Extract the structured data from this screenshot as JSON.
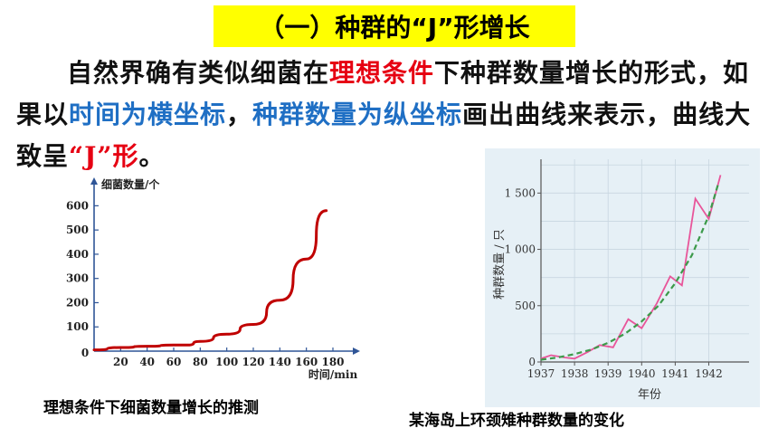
{
  "title": "（一）种群的“J”形增长",
  "paragraph": {
    "p1": "自然界确有类似细菌在",
    "p2": "理想条件",
    "p3": "下种群数量增长的形式，如果以",
    "p4": "时间为横坐标",
    "p5": "，",
    "p6": "种群数量为纵坐标",
    "p7": "画出曲线来表示，曲线大致呈",
    "p8": "“J”形",
    "p9": "。"
  },
  "captions": {
    "left": "理想条件下细菌数量增长的推测",
    "right": "某海岛上环颈雉种群数量的变化"
  },
  "colors": {
    "highlight": "#ffff00",
    "accent_red": "#e60012",
    "accent_blue": "#1f6fc4",
    "curve_red": "#c00000",
    "line_pink": "#e8559a",
    "dash_green": "#3c9a4a",
    "plot_bg": "#e6f0f6"
  },
  "chart_data": [
    {
      "type": "line",
      "title": "",
      "xlabel": "时间/min",
      "ylabel": "细菌数量/个",
      "xticks": [
        "20",
        "40",
        "60",
        "80",
        "100",
        "120",
        "140",
        "160",
        "180"
      ],
      "yticks": [
        "100",
        "200",
        "300",
        "400",
        "500",
        "600"
      ],
      "origin_label": "0",
      "xlim": [
        0,
        195
      ],
      "ylim": [
        0,
        650
      ],
      "series": [
        {
          "x": [
            0,
            20,
            40,
            60,
            70,
            80,
            100,
            120,
            140,
            160,
            175
          ],
          "y": [
            5,
            15,
            20,
            25,
            25,
            40,
            70,
            110,
            210,
            380,
            580
          ]
        }
      ]
    },
    {
      "type": "line",
      "title": "",
      "xlabel": "年份",
      "ylabel": "种群数量 / 只",
      "xticks": [
        "1937",
        "1938",
        "1939",
        "1940",
        "1941",
        "1942"
      ],
      "yticks": [
        "0",
        "500",
        "1 000",
        "1 500"
      ],
      "xlim": [
        1937,
        1943.2
      ],
      "ylim": [
        0,
        1800
      ],
      "grid": true,
      "series": [
        {
          "style": "solid",
          "x": [
            1937,
            1937.3,
            1937.7,
            1938,
            1938.4,
            1938.75,
            1939.15,
            1939.6,
            1940,
            1940.45,
            1940.85,
            1941.2,
            1941.6,
            1942,
            1942.35
          ],
          "y": [
            30,
            60,
            40,
            30,
            90,
            150,
            130,
            380,
            300,
            520,
            760,
            680,
            1450,
            1270,
            1660
          ]
        },
        {
          "style": "dashed",
          "x": [
            1937,
            1937.5,
            1938,
            1938.5,
            1939,
            1939.5,
            1940,
            1940.5,
            1941,
            1941.5,
            1942,
            1942.3
          ],
          "y": [
            20,
            40,
            70,
            110,
            170,
            250,
            360,
            500,
            700,
            950,
            1300,
            1600
          ]
        }
      ]
    }
  ]
}
